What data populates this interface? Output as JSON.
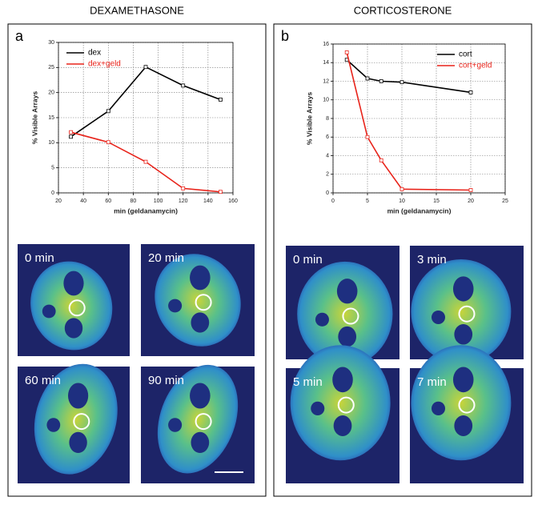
{
  "panels": [
    {
      "heading": "DEXAMETHASONE",
      "letter": "a",
      "images": [
        "0 min",
        "20 min",
        "60 min",
        "90 min"
      ]
    },
    {
      "heading": "CORTICOSTERONE",
      "letter": "b",
      "images": [
        "0 min",
        "3 min",
        "5 min",
        "7 min"
      ]
    }
  ],
  "chart_data": [
    {
      "type": "line",
      "x_label": "min (geldanamycin)",
      "y_label": "% Visible Arrays",
      "xlim": [
        20,
        160
      ],
      "xticks": [
        20,
        40,
        60,
        80,
        100,
        120,
        140,
        160
      ],
      "ylim": [
        0,
        30
      ],
      "yticks": [
        0,
        5,
        10,
        15,
        20,
        25,
        30
      ],
      "grid": true,
      "legend": "upper left",
      "series": [
        {
          "name": "dex",
          "color": "#000000",
          "x": [
            30,
            60,
            90,
            120,
            150
          ],
          "values": [
            11.2,
            16.3,
            25.1,
            21.4,
            18.6
          ]
        },
        {
          "name": "dex+geld",
          "color": "#e8231a",
          "x": [
            30,
            60,
            90,
            120,
            150
          ],
          "values": [
            12.1,
            10.1,
            6.2,
            0.9,
            0.2
          ]
        }
      ]
    },
    {
      "type": "line",
      "x_label": "min (geldanamycin)",
      "y_label": "% Visible Arrays",
      "xlim": [
        0,
        25
      ],
      "xticks": [
        0,
        5,
        10,
        15,
        20,
        25
      ],
      "ylim": [
        0,
        16
      ],
      "yticks": [
        0,
        2,
        4,
        6,
        8,
        10,
        12,
        14,
        16
      ],
      "grid": true,
      "legend": "upper right",
      "series": [
        {
          "name": "cort",
          "color": "#000000",
          "x": [
            2,
            5,
            7,
            10,
            20
          ],
          "values": [
            14.3,
            12.3,
            12.0,
            11.9,
            10.8
          ]
        },
        {
          "name": "cort+geld",
          "color": "#e8231a",
          "x": [
            2,
            5,
            7,
            10,
            20
          ],
          "values": [
            15.1,
            6.0,
            3.5,
            0.4,
            0.3
          ]
        }
      ]
    }
  ]
}
